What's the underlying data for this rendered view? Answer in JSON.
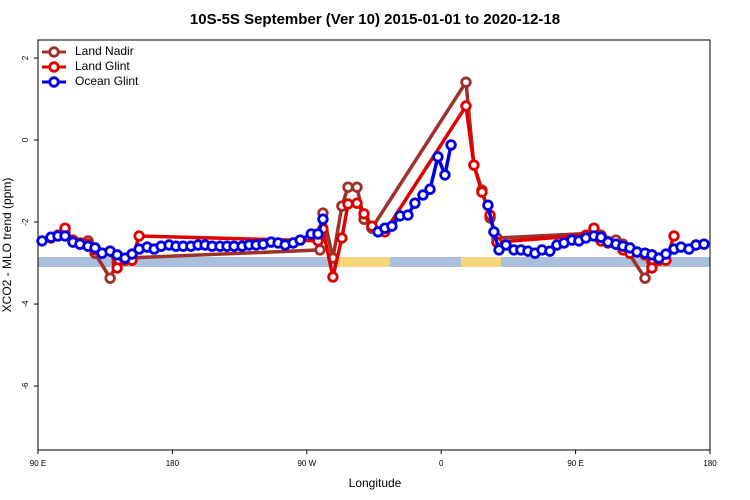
{
  "chart_data": {
    "type": "line",
    "title": "10S-5S September (Ver 10)   2015-01-01 to 2020-12-18",
    "x_label": "Longitude",
    "y_label": "XCO2 - MLO trend (ppm)",
    "xlim": [
      90,
      540
    ],
    "xticks": [
      {
        "value": 90,
        "label": "90 E"
      },
      180,
      {
        "value": 270,
        "label": "90 W"
      },
      {
        "value": 360,
        "label": "0"
      },
      {
        "value": 450,
        "label": "90 E"
      },
      {
        "value": 540,
        "label": "180"
      }
    ],
    "ylim": [
      -7.56,
      2.44
    ],
    "yticks": [
      -6,
      -4,
      -2,
      0,
      2
    ],
    "legend": "top-left",
    "series": [
      {
        "name": "Land Nadir",
        "color": "#a0302a",
        "x": [
          103.4,
          108.1,
          113.4,
          123.5,
          128.2,
          138.3,
          143,
          148.3,
          278.8,
          280.8,
          287.5,
          293.5,
          297.6,
          303.6,
          308.3,
          313.6,
          376.6,
          381.9,
          387.3,
          392.7,
          397.3,
          462.3,
          467,
          477,
          481.7,
          496.5,
          501.1,
          505.8
        ],
        "values": [
          -2.32,
          -2.24,
          -2.44,
          -2.46,
          -2.76,
          -3.37,
          -2.98,
          -2.88,
          -2.68,
          -1.78,
          -2.88,
          -1.61,
          -1.15,
          -1.15,
          -1.93,
          -2.15,
          1.41,
          -0.61,
          -1.22,
          -1.9,
          -2.39,
          -2.27,
          -2.32,
          -2.44,
          -2.54,
          -3.37,
          -2.98,
          -2.88
        ]
      },
      {
        "name": "Land Glint",
        "color": "#e00000",
        "x": [
          98.7,
          103.4,
          108.1,
          113.4,
          118.1,
          123.5,
          128.2,
          132.9,
          138.3,
          143,
          148.3,
          153,
          157.7,
          277.5,
          280.8,
          287.5,
          293.5,
          297.6,
          303.6,
          308.3,
          313.6,
          322.3,
          376.6,
          381.9,
          387.3,
          392.7,
          397.3,
          456.9,
          462.3,
          467,
          471.7,
          477,
          481.7,
          486.4,
          496.5,
          501.1,
          505.8,
          510.5,
          515.9
        ],
        "values": [
          -2.39,
          -2.32,
          -2.15,
          -2.46,
          -2.51,
          -2.54,
          -2.68,
          -2.76,
          -2.71,
          -3.12,
          -2.93,
          -2.93,
          -2.34,
          -2.46,
          -2.17,
          -3.34,
          -2.39,
          -1.56,
          -1.54,
          -1.8,
          -2.1,
          -2.24,
          0.83,
          -0.61,
          -1.27,
          -1.83,
          -2.49,
          -2.32,
          -2.15,
          -2.46,
          -2.51,
          -2.54,
          -2.68,
          -2.76,
          -2.8,
          -3.12,
          -2.93,
          -2.93,
          -2.34
        ]
      },
      {
        "name": "Ocean Glint",
        "color": "#0000e0",
        "x": [
          92.7,
          98.7,
          103.4,
          108.1,
          113.4,
          118.1,
          123.5,
          128.2,
          132.9,
          138.3,
          143,
          148.3,
          153,
          157.7,
          163.1,
          167.8,
          172.5,
          177.8,
          182.4,
          187.2,
          192.4,
          197.2,
          201.9,
          206.6,
          211.9,
          216.6,
          221.3,
          226.7,
          231.4,
          236.1,
          240.8,
          246.1,
          250.8,
          255.5,
          260.9,
          265.6,
          273,
          277.5,
          280.8,
          300,
          317.7,
          322.3,
          327,
          332.4,
          337.7,
          342.4,
          347.8,
          352.5,
          357.8,
          362.5,
          366.6,
          380,
          391.3,
          395.3,
          398.7,
          403.4,
          408.7,
          413.4,
          418.1,
          422.8,
          427.5,
          432.8,
          437.5,
          442.2,
          447.6,
          452.2,
          456.9,
          462.3,
          467,
          471.7,
          477,
          481.7,
          486.4,
          491.1,
          496.5,
          501.1,
          505.8,
          510.5,
          515.9,
          520.6,
          525.9,
          530.6,
          536
        ],
        "values": [
          -2.46,
          -2.37,
          -2.34,
          -2.34,
          -2.49,
          -2.54,
          -2.59,
          -2.63,
          -2.76,
          -2.71,
          -2.8,
          -2.88,
          -2.78,
          -2.66,
          -2.61,
          -2.66,
          -2.59,
          -2.56,
          -2.59,
          -2.59,
          -2.59,
          -2.56,
          -2.56,
          -2.59,
          -2.59,
          -2.59,
          -2.59,
          -2.59,
          -2.56,
          -2.56,
          -2.54,
          -2.49,
          -2.51,
          -2.56,
          -2.51,
          -2.44,
          -2.29,
          -2.29,
          -1.93,
          null,
          -2.24,
          -2.15,
          -2.1,
          -1.85,
          -1.83,
          -1.54,
          -1.34,
          -1.2,
          -0.41,
          -0.85,
          -0.12,
          null,
          -1.59,
          -2.24,
          -2.68,
          -2.56,
          -2.68,
          -2.68,
          -2.71,
          -2.76,
          -2.68,
          -2.71,
          -2.56,
          -2.51,
          -2.44,
          -2.46,
          -2.39,
          -2.34,
          -2.37,
          -2.49,
          -2.54,
          -2.59,
          -2.63,
          -2.73,
          -2.76,
          -2.8,
          -2.88,
          -2.78,
          -2.66,
          -2.61,
          -2.66,
          -2.56,
          -2.54
        ]
      }
    ]
  }
}
